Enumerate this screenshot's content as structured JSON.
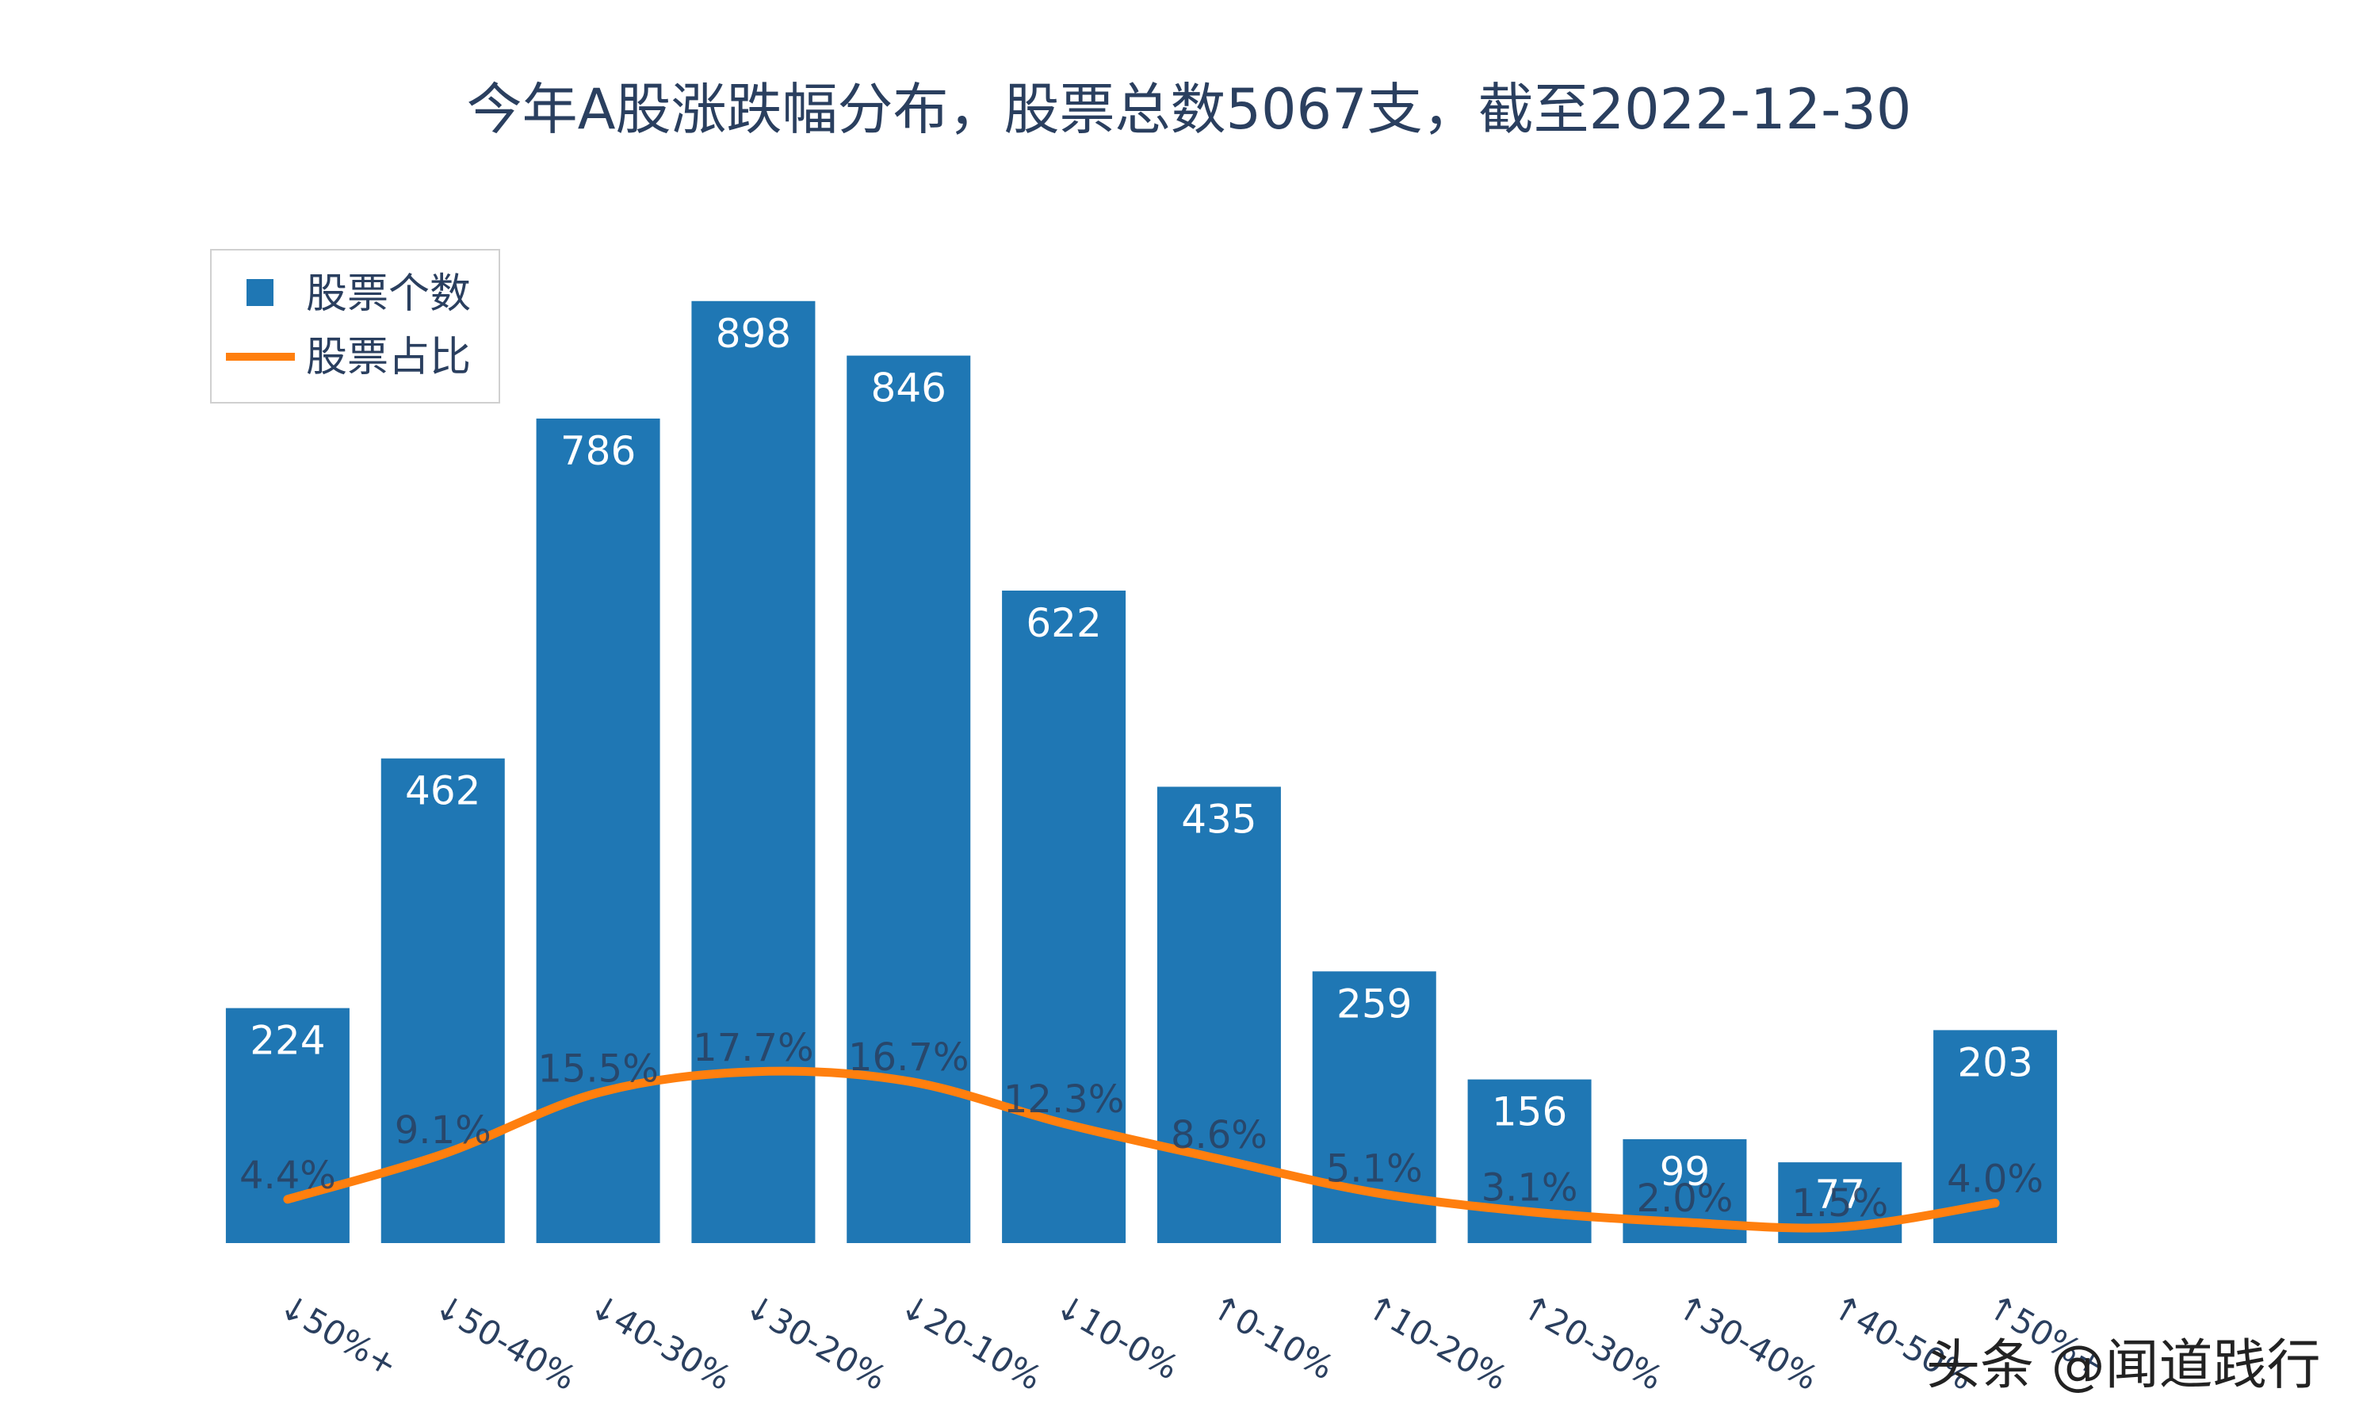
{
  "chart_data": {
    "type": "bar",
    "title": "今年A股涨跌幅分布，股票总数5067支，截至2022-12-30",
    "categories": [
      "↓50%+",
      "↓50-40%",
      "↓40-30%",
      "↓30-20%",
      "↓20-10%",
      "↓10-0%",
      "↑0-10%",
      "↑10-20%",
      "↑20-30%",
      "↑30-40%",
      "↑40-50%",
      "↑50%+"
    ],
    "series": [
      {
        "name": "股票个数",
        "type": "bar",
        "color": "#1f77b4",
        "values": [
          224,
          462,
          786,
          898,
          846,
          622,
          435,
          259,
          156,
          99,
          77,
          203
        ]
      },
      {
        "name": "股票占比",
        "type": "line",
        "color": "#ff7f0e",
        "values": [
          4.4,
          9.1,
          15.5,
          17.7,
          16.7,
          12.3,
          8.6,
          5.1,
          3.1,
          2.0,
          1.5,
          4.0
        ],
        "labels": [
          "4.4%",
          "9.1%",
          "15.5%",
          "17.7%",
          "16.7%",
          "12.3%",
          "8.6%",
          "5.1%",
          "3.1%",
          "2.0%",
          "1.5%",
          "4.0%"
        ]
      }
    ],
    "legend": "top-left",
    "grid": false
  },
  "watermark": "头条 @闻道践行"
}
